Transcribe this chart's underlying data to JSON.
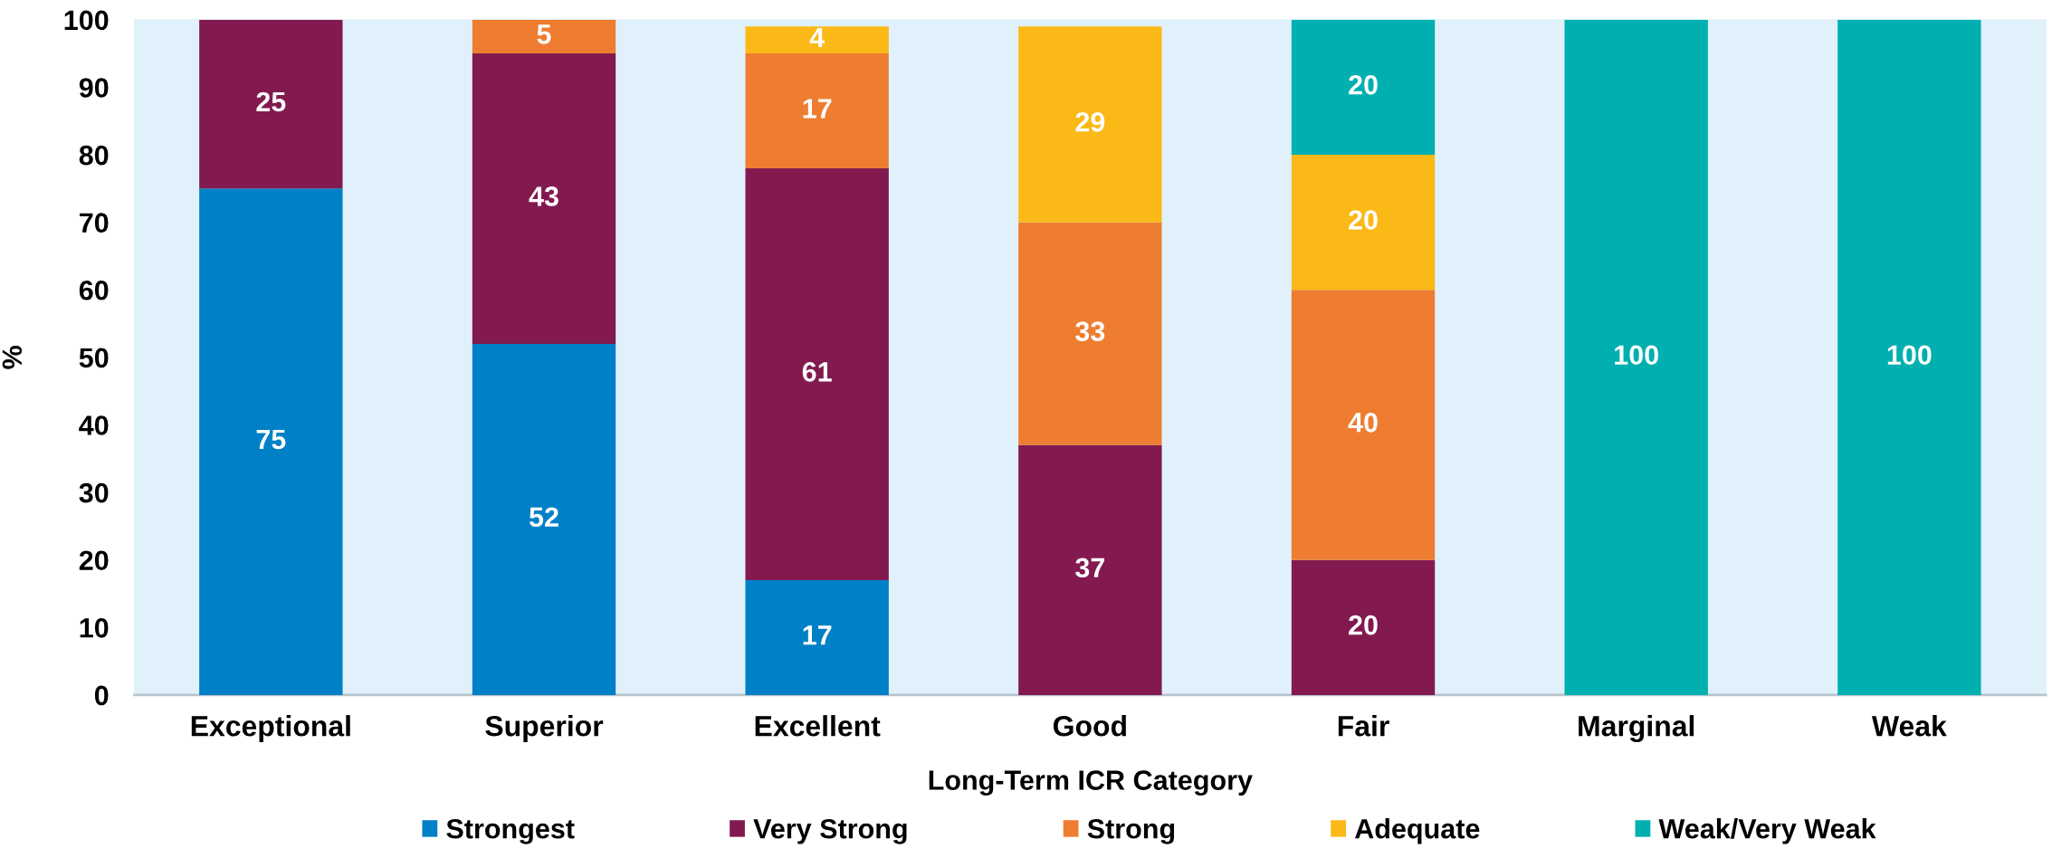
{
  "chart_data": {
    "type": "bar",
    "stacked": true,
    "xlabel": "Long-Term ICR Category",
    "ylabel": "%",
    "categories": [
      "Exceptional",
      "Superior",
      "Excellent",
      "Good",
      "Fair",
      "Marginal",
      "Weak"
    ],
    "series": [
      {
        "name": "Strongest",
        "color": "#0080c6",
        "values": [
          75,
          52,
          17,
          null,
          null,
          null,
          null
        ]
      },
      {
        "name": "Very Strong",
        "color": "#821a50",
        "values": [
          25,
          43,
          61,
          37,
          20,
          null,
          null
        ]
      },
      {
        "name": "Strong",
        "color": "#ee7d31",
        "values": [
          null,
          5,
          17,
          33,
          40,
          null,
          null
        ]
      },
      {
        "name": "Adequate",
        "color": "#fbb918",
        "values": [
          null,
          null,
          4,
          29,
          20,
          null,
          null
        ]
      },
      {
        "name": "Weak/Very Weak",
        "color": "#00afaf",
        "values": [
          null,
          null,
          null,
          null,
          20,
          100,
          100
        ]
      }
    ],
    "ylim": [
      0,
      100
    ],
    "yticks": [
      0,
      10,
      20,
      30,
      40,
      50,
      60,
      70,
      80,
      90,
      100
    ],
    "data_labels": true,
    "legend": "bottom"
  }
}
